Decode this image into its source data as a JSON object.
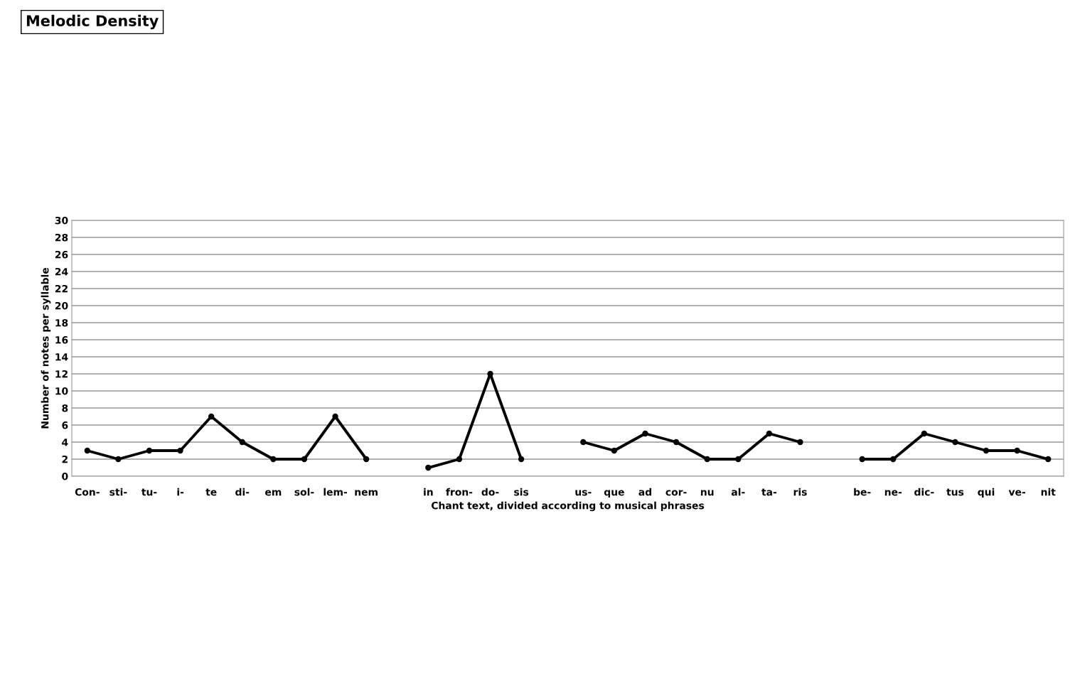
{
  "chart_data": {
    "type": "line",
    "title": "Melodic Density",
    "xlabel": "Chant text, divided according to musical phrases",
    "ylabel": "Number of notes per syllable",
    "categories": [
      "Con-",
      "sti-",
      "tu-",
      "i-",
      "te",
      "di-",
      "em",
      "sol-",
      "lem-",
      "nem",
      null,
      "in",
      "fron-",
      "do-",
      "sis",
      null,
      "us-",
      "que",
      "ad",
      "cor-",
      "nu",
      "al-",
      "ta-",
      "ris",
      null,
      "be-",
      "ne-",
      "dic-",
      "tus",
      "qui",
      "ve-",
      "nit"
    ],
    "series": [
      {
        "color": "#000000",
        "values": [
          3,
          2,
          3,
          3,
          7,
          4,
          2,
          2,
          7,
          2,
          null,
          1,
          2,
          12,
          2,
          null,
          4,
          3,
          5,
          4,
          2,
          2,
          5,
          4,
          null,
          2,
          2,
          5,
          4,
          3,
          3,
          2
        ]
      }
    ],
    "ylim": [
      0,
      30
    ],
    "yticks": [
      0,
      2,
      4,
      6,
      8,
      10,
      12,
      14,
      16,
      18,
      20,
      22,
      24,
      26,
      28,
      30
    ],
    "grid": "y",
    "legend": false,
    "marker": "circle",
    "line_style": "solid"
  }
}
